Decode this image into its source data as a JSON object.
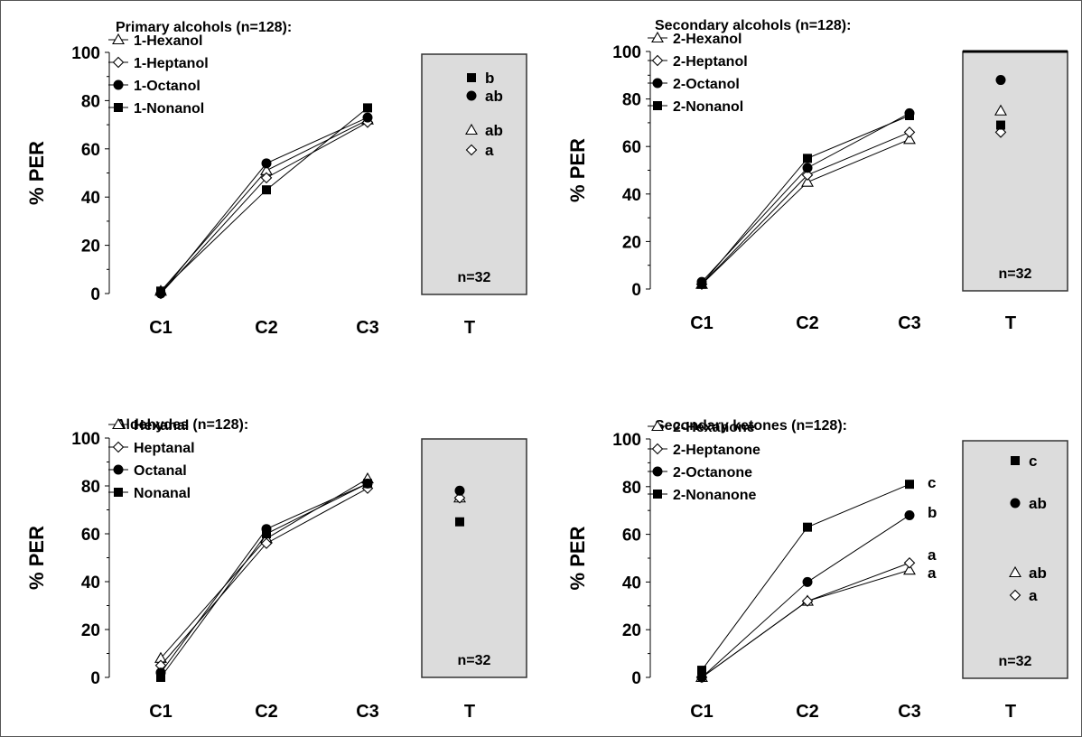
{
  "chart_data": [
    {
      "type": "line",
      "title": "Primary alcohols (n=128):",
      "ylabel": "% PER",
      "categories": [
        "C1",
        "C2",
        "C3"
      ],
      "test_category": "T",
      "test_n": "n=32",
      "ylim": [
        0,
        100
      ],
      "yticks": [
        "0",
        "20",
        "40",
        "60",
        "80",
        "100"
      ],
      "series": [
        {
          "name": "1-Hexanol",
          "marker": "triangle",
          "values": [
            1,
            51,
            72
          ],
          "test": 71,
          "sig": "ab"
        },
        {
          "name": "1-Heptanol",
          "marker": "diamond",
          "values": [
            0,
            48,
            71
          ],
          "test": 66,
          "sig": "a"
        },
        {
          "name": "1-Octanol",
          "marker": "circle",
          "values": [
            0,
            54,
            73
          ],
          "test": 82,
          "sig": "ab"
        },
        {
          "name": "1-Nonanol",
          "marker": "square",
          "values": [
            1,
            43,
            77
          ],
          "test": 87,
          "sig": "b"
        }
      ]
    },
    {
      "type": "line",
      "title": "Secondary alcohols (n=128):",
      "ylabel": "% PER",
      "categories": [
        "C1",
        "C2",
        "C3"
      ],
      "test_category": "T",
      "test_n": "n=32",
      "ylim": [
        0,
        100
      ],
      "yticks": [
        "0",
        "20",
        "40",
        "60",
        "80",
        "100"
      ],
      "series": [
        {
          "name": "2-Hexanol",
          "marker": "triangle",
          "values": [
            2,
            45,
            63
          ],
          "test": 75,
          "sig": ""
        },
        {
          "name": "2-Heptanol",
          "marker": "diamond",
          "values": [
            2,
            48,
            66
          ],
          "test": 66,
          "sig": ""
        },
        {
          "name": "2-Octanol",
          "marker": "circle",
          "values": [
            3,
            51,
            74
          ],
          "test": 88,
          "sig": ""
        },
        {
          "name": "2-Nonanol",
          "marker": "square",
          "values": [
            2,
            55,
            73
          ],
          "test": 69,
          "sig": ""
        }
      ]
    },
    {
      "type": "line",
      "title": "Aldehydes (n=128):",
      "ylabel": "% PER",
      "categories": [
        "C1",
        "C2",
        "C3"
      ],
      "test_category": "T",
      "test_n": "n=32",
      "ylim": [
        0,
        100
      ],
      "yticks": [
        "0",
        "20",
        "40",
        "60",
        "80",
        "100"
      ],
      "series": [
        {
          "name": "Hexanal",
          "marker": "triangle",
          "values": [
            8,
            58,
            83
          ],
          "test": 75,
          "sig": ""
        },
        {
          "name": "Heptanal",
          "marker": "diamond",
          "values": [
            5,
            56,
            79
          ],
          "test": 75,
          "sig": ""
        },
        {
          "name": "Octanal",
          "marker": "circle",
          "values": [
            2,
            62,
            81
          ],
          "test": 78,
          "sig": ""
        },
        {
          "name": "Nonanal",
          "marker": "square",
          "values": [
            0,
            60,
            81
          ],
          "test": 65,
          "sig": ""
        }
      ]
    },
    {
      "type": "line",
      "title": "Secondary ketones (n=128):",
      "ylabel": "% PER",
      "categories": [
        "C1",
        "C2",
        "C3"
      ],
      "test_category": "T",
      "test_n": "n=32",
      "ylim": [
        0,
        100
      ],
      "yticks": [
        "0",
        "20",
        "40",
        "60",
        "80",
        "100"
      ],
      "series": [
        {
          "name": "2-Hexanone",
          "marker": "triangle",
          "values": [
            0,
            32,
            45
          ],
          "test": 43,
          "sig": "ab",
          "c3_sig": "a"
        },
        {
          "name": "2-Heptanone",
          "marker": "diamond",
          "values": [
            0,
            32,
            48
          ],
          "test": 35,
          "sig": "a",
          "c3_sig": "a"
        },
        {
          "name": "2-Octanone",
          "marker": "circle",
          "values": [
            0,
            40,
            68
          ],
          "test": 72,
          "sig": "ab",
          "c3_sig": "b"
        },
        {
          "name": "2-Nonanone",
          "marker": "square",
          "values": [
            3,
            63,
            81
          ],
          "test": 90,
          "sig": "c",
          "c3_sig": "c"
        }
      ]
    }
  ]
}
